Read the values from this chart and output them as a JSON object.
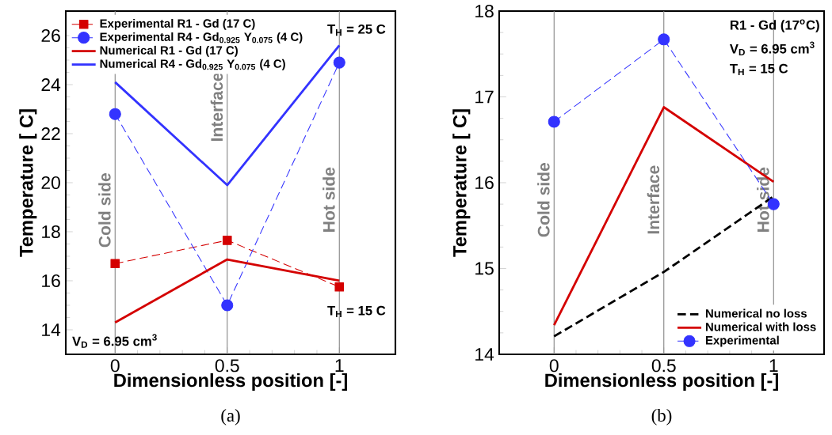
{
  "chart_data": [
    {
      "type": "line",
      "x": [
        0,
        0.5,
        1
      ],
      "xlim": [
        -0.22,
        1.25
      ],
      "xticks": [
        0,
        0.5,
        1
      ],
      "ylim": [
        13,
        27
      ],
      "yticks": [
        14,
        16,
        18,
        20,
        22,
        24,
        26
      ],
      "xlabel": "Dimensionless position [-]",
      "ylabel": "Temperature [ C]",
      "legend": "top left",
      "series": [
        {
          "name": "Experimental R1 - Gd (17 C)",
          "color": "#d40000",
          "values": [
            16.7,
            17.65,
            15.75
          ],
          "marker": "square",
          "line_style": "dashed"
        },
        {
          "name": "Experimental R4 - Gd$_{0.925}$ Y$_{0.075}$ (4 C)",
          "color": "#3333ff",
          "values": [
            22.8,
            15.0,
            24.9
          ],
          "marker": "circle",
          "line_style": "dashed"
        },
        {
          "name": "Numerical R1 - Gd (17 C)",
          "color": "#d40000",
          "values": [
            14.3,
            16.87,
            16.0
          ],
          "marker": "none",
          "line_style": "solid"
        },
        {
          "name": "Numerical R4 - Gd$_{0.925}$ Y$_{0.075}$ (4 C)",
          "color": "#3333ff",
          "values": [
            24.1,
            19.9,
            25.6
          ],
          "marker": "none",
          "line_style": "solid"
        }
      ],
      "ref_lines": [
        {
          "axis": "x",
          "value": 0,
          "label": "Cold side",
          "color": "#808080"
        },
        {
          "axis": "x",
          "value": 0.5,
          "label": "Interface",
          "color": "#808080"
        },
        {
          "axis": "x",
          "value": 1,
          "label": "Hot side",
          "color": "#808080"
        }
      ],
      "annotations": [
        "T$_{H}$ = 25 C",
        "T$_{H}$ = 15 C",
        "V$_{D}$ = 6.95 cm$^{3}$",
        "(a)"
      ]
    },
    {
      "type": "line",
      "x": [
        0,
        0.5,
        1
      ],
      "xlim": [
        -0.25,
        1.23
      ],
      "xticks": [
        0,
        0.5,
        1
      ],
      "ylim": [
        14,
        18
      ],
      "yticks": [
        14,
        15,
        16,
        17,
        18
      ],
      "xlabel": "Dimensionless position [-]",
      "ylabel": "Temperature [ C]",
      "legend": "bottom right",
      "series": [
        {
          "name": "Numerical no loss",
          "color": "#000000",
          "values": [
            14.21,
            14.96,
            15.84
          ],
          "marker": "none",
          "line_style": "dashed"
        },
        {
          "name": "Numerical with loss",
          "color": "#d40000",
          "values": [
            14.34,
            16.88,
            16.01
          ],
          "marker": "none",
          "line_style": "solid"
        },
        {
          "name": "Experimental",
          "color": "#3333ff",
          "values": [
            16.71,
            17.67,
            15.75
          ],
          "marker": "circle",
          "line_style": "dashed"
        }
      ],
      "ref_lines": [
        {
          "axis": "x",
          "value": 0,
          "label": "Cold side",
          "color": "#808080"
        },
        {
          "axis": "x",
          "value": 0.5,
          "label": "Interface",
          "color": "#808080"
        },
        {
          "axis": "x",
          "value": 1,
          "label": "Hot side",
          "color": "#808080"
        }
      ],
      "annotations": [
        "R1 - Gd (17$^{o}$C)",
        "V$_{D}$ = 6.95 cm$^{3}$",
        "T$_{H}$ = 15 C",
        "(b)"
      ]
    }
  ]
}
